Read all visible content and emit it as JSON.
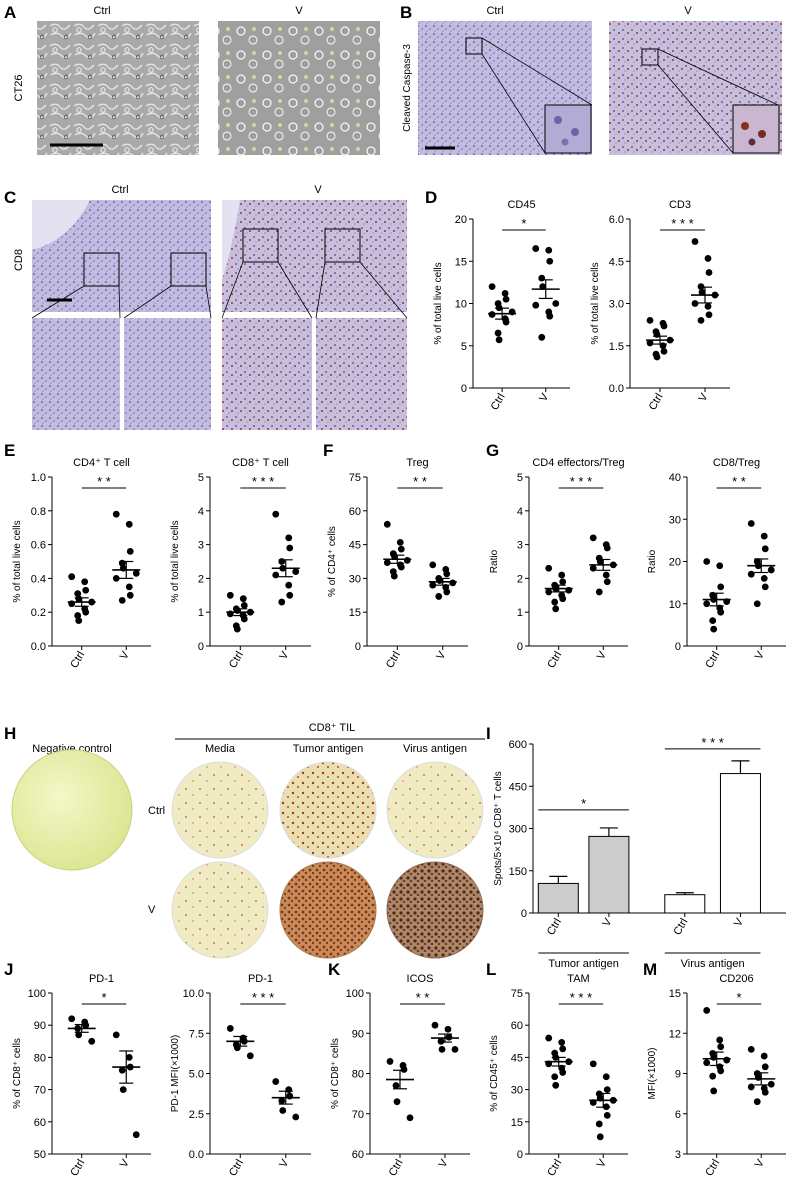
{
  "panel_letters": {
    "A": "A",
    "B": "B",
    "C": "C",
    "D": "D",
    "E": "E",
    "F": "F",
    "G": "G",
    "H": "H",
    "I": "I",
    "J": "J",
    "K": "K",
    "L": "L",
    "M": "M"
  },
  "panel_a": {
    "row_label": "CT26",
    "col_labels": [
      "Ctrl",
      "V"
    ]
  },
  "panel_b": {
    "row_label": "Cleaved Caspase-3",
    "col_labels": [
      "Ctrl",
      "V"
    ]
  },
  "panel_c": {
    "row_label": "CD8",
    "col_labels": [
      "Ctrl",
      "V"
    ]
  },
  "panel_h": {
    "neg_label": "Negative control",
    "group_label": "CD8⁺ TIL",
    "col_labels": [
      "Media",
      "Tumor antigen",
      "Virus antigen"
    ],
    "row_labels": [
      "Ctrl",
      "V"
    ]
  },
  "colors": {
    "tissue": "#b9b3d8",
    "tissue_dark": "#8d86c0",
    "cell_bg": "#aaaaaa",
    "well_bg": "#f2edc4",
    "well_dark": "#a0472a",
    "bar_gray": "#cccccc"
  },
  "chart_data": [
    {
      "id": "D1",
      "type": "scatter",
      "title": "CD45",
      "ylabel": "% of total live cells",
      "categories": [
        "Ctrl",
        "V"
      ],
      "ylim": [
        0,
        20
      ],
      "yticks": [
        "0",
        "5",
        "10",
        "15",
        "20"
      ],
      "sig": "*",
      "series": [
        {
          "values": [
            12.0,
            11.2,
            10.5,
            10.0,
            9.5,
            9.0,
            8.7,
            8.2,
            7.8,
            6.5,
            5.7
          ]
        },
        {
          "values": [
            16.5,
            16.3,
            15.0,
            13.0,
            12.0,
            10.0,
            9.8,
            9.0,
            8.5,
            6.0
          ]
        }
      ],
      "means": [
        8.8,
        11.7
      ],
      "sem": [
        0.65,
        1.1
      ]
    },
    {
      "id": "D2",
      "type": "scatter",
      "title": "CD3",
      "ylabel": "% of total live cells",
      "categories": [
        "Ctrl",
        "V"
      ],
      "ylim": [
        0,
        6
      ],
      "yticks": [
        "0.0",
        "1.5",
        "3.0",
        "4.5",
        "6.0"
      ],
      "sig": "* * *",
      "series": [
        {
          "values": [
            2.4,
            2.3,
            2.2,
            2.0,
            1.9,
            1.7,
            1.6,
            1.5,
            1.3,
            1.2,
            1.1
          ]
        },
        {
          "values": [
            5.2,
            4.6,
            4.1,
            3.6,
            3.4,
            3.3,
            3.0,
            2.9,
            2.6,
            2.4
          ]
        }
      ],
      "means": [
        1.7,
        3.3
      ],
      "sem": [
        0.14,
        0.28
      ]
    },
    {
      "id": "E1",
      "type": "scatter",
      "title": "CD4⁺ T cell",
      "ylabel": "% of total live cells",
      "categories": [
        "Ctrl",
        "V"
      ],
      "ylim": [
        0,
        1.0
      ],
      "yticks": [
        "0.0",
        "0.2",
        "0.4",
        "0.6",
        "0.8",
        "1.0"
      ],
      "sig": "*   *",
      "series": [
        {
          "values": [
            0.41,
            0.38,
            0.33,
            0.31,
            0.28,
            0.26,
            0.25,
            0.22,
            0.2,
            0.18,
            0.15
          ]
        },
        {
          "values": [
            0.78,
            0.72,
            0.56,
            0.49,
            0.46,
            0.43,
            0.4,
            0.35,
            0.3,
            0.27
          ]
        }
      ],
      "means": [
        0.26,
        0.45
      ],
      "sem": [
        0.025,
        0.05
      ]
    },
    {
      "id": "E2",
      "type": "scatter",
      "title": "CD8⁺ T cell",
      "ylabel": "% of total live cells",
      "categories": [
        "Ctrl",
        "V"
      ],
      "ylim": [
        0,
        5
      ],
      "yticks": [
        "0",
        "1",
        "2",
        "3",
        "4",
        "5"
      ],
      "sig": "* * *",
      "series": [
        {
          "values": [
            1.5,
            1.4,
            1.2,
            1.1,
            1.05,
            1.0,
            0.95,
            0.9,
            0.8,
            0.6,
            0.5
          ]
        },
        {
          "values": [
            3.9,
            3.2,
            2.9,
            2.5,
            2.3,
            2.2,
            2.1,
            1.8,
            1.5,
            1.3
          ]
        }
      ],
      "means": [
        1.0,
        2.3
      ],
      "sem": [
        0.1,
        0.25
      ]
    },
    {
      "id": "F",
      "type": "scatter",
      "title": "Treg",
      "ylabel": "% of CD4⁺ cells",
      "categories": [
        "Ctrl",
        "V"
      ],
      "ylim": [
        0,
        75
      ],
      "yticks": [
        "0",
        "15",
        "30",
        "45",
        "60",
        "75"
      ],
      "sig": "*   *",
      "series": [
        {
          "values": [
            54,
            46,
            43,
            41,
            40,
            38,
            37,
            36,
            35,
            33,
            31
          ]
        },
        {
          "values": [
            36,
            34,
            32,
            30,
            29,
            28,
            27,
            26,
            24,
            22
          ]
        }
      ],
      "means": [
        38.5,
        28.5
      ],
      "sem": [
        1.8,
        1.5
      ]
    },
    {
      "id": "G1",
      "type": "scatter",
      "title": "CD4 effectors/Treg",
      "ylabel": "Ratio",
      "categories": [
        "Ctrl",
        "V"
      ],
      "ylim": [
        0,
        5
      ],
      "yticks": [
        "0",
        "1",
        "2",
        "3",
        "4",
        "5"
      ],
      "sig": "* * *",
      "series": [
        {
          "values": [
            2.3,
            2.1,
            1.9,
            1.8,
            1.7,
            1.65,
            1.6,
            1.5,
            1.4,
            1.3,
            1.1
          ]
        },
        {
          "values": [
            3.2,
            3.0,
            2.9,
            2.6,
            2.5,
            2.4,
            2.3,
            2.1,
            1.9,
            1.6
          ]
        }
      ],
      "means": [
        1.7,
        2.4
      ],
      "sem": [
        0.1,
        0.16
      ]
    },
    {
      "id": "G2",
      "type": "scatter",
      "title": "CD8/Treg",
      "ylabel": "Ratio",
      "categories": [
        "Ctrl",
        "V"
      ],
      "ylim": [
        0,
        40
      ],
      "yticks": [
        "0",
        "10",
        "20",
        "30",
        "40"
      ],
      "sig": "*   *",
      "series": [
        {
          "values": [
            20,
            19,
            14,
            12,
            11,
            10.5,
            10,
            9,
            8,
            6,
            4
          ]
        },
        {
          "values": [
            29,
            26,
            23,
            20,
            19,
            18,
            17,
            16,
            14,
            10
          ]
        }
      ],
      "means": [
        11,
        19
      ],
      "sem": [
        1.5,
        1.6
      ]
    },
    {
      "id": "I",
      "type": "bar",
      "ylabel": "Spots/5×10⁴ CD8⁺ T cells",
      "categories": [
        "Ctrl",
        "V",
        "Ctrl",
        "V"
      ],
      "ylim": [
        0,
        600
      ],
      "yticks": [
        "0",
        "150",
        "300",
        "450",
        "600"
      ],
      "values": [
        105,
        272,
        65,
        495
      ],
      "err": [
        25,
        30,
        7,
        45
      ],
      "fills": [
        "#cccccc",
        "#cccccc",
        "#ffffff",
        "#ffffff"
      ],
      "groups": [
        "Tumor antigen",
        "Virus antigen"
      ],
      "sig": [
        "*",
        "* * *"
      ]
    },
    {
      "id": "J1",
      "type": "scatter",
      "title": "PD-1",
      "ylabel": "% of CD8⁺ cells",
      "categories": [
        "Ctrl",
        "V"
      ],
      "ylim": [
        50,
        100
      ],
      "yticks": [
        "50",
        "60",
        "70",
        "80",
        "90",
        "100"
      ],
      "sig": "*",
      "series": [
        {
          "values": [
            92,
            91,
            90,
            89,
            87,
            85
          ]
        },
        {
          "values": [
            87,
            80,
            77,
            76,
            70,
            56
          ]
        }
      ],
      "means": [
        89,
        77
      ],
      "sem": [
        1.2,
        5
      ]
    },
    {
      "id": "J2",
      "type": "scatter",
      "title": "PD-1",
      "ylabel": "PD-1 MFI(×1000)",
      "categories": [
        "Ctrl",
        "V"
      ],
      "ylim": [
        0,
        10
      ],
      "yticks": [
        "0.0",
        "2.5",
        "5.0",
        "7.5",
        "10.0"
      ],
      "sig": "* * *",
      "series": [
        {
          "values": [
            7.8,
            7.2,
            7.0,
            6.8,
            6.6,
            6.1
          ]
        },
        {
          "values": [
            4.5,
            4.0,
            3.6,
            3.3,
            2.7,
            2.3
          ]
        }
      ],
      "means": [
        7.0,
        3.5
      ],
      "sem": [
        0.3,
        0.4
      ]
    },
    {
      "id": "K",
      "type": "scatter",
      "title": "ICOS",
      "ylabel": "% of CD8⁺ cells",
      "categories": [
        "Ctrl",
        "V"
      ],
      "ylim": [
        60,
        100
      ],
      "yticks": [
        "60",
        "70",
        "80",
        "90",
        "100"
      ],
      "sig": "*   *",
      "series": [
        {
          "values": [
            83,
            82,
            81,
            77,
            73,
            69
          ]
        },
        {
          "values": [
            92,
            91,
            89,
            88,
            86,
            86
          ]
        }
      ],
      "means": [
        78.5,
        88.8
      ],
      "sem": [
        2.3,
        1.0
      ]
    },
    {
      "id": "L",
      "type": "scatter",
      "title": "TAM",
      "ylabel": "% of CD45⁺ cells",
      "categories": [
        "Ctrl",
        "V"
      ],
      "ylim": [
        0,
        75
      ],
      "yticks": [
        "0",
        "15",
        "30",
        "45",
        "60",
        "75"
      ],
      "sig": "* * *",
      "series": [
        {
          "values": [
            54,
            52,
            49,
            47,
            45,
            43,
            42,
            40,
            38,
            36,
            32
          ]
        },
        {
          "values": [
            42,
            36,
            30,
            28,
            26,
            25,
            24,
            22,
            18,
            14,
            8
          ]
        }
      ],
      "means": [
        43,
        25
      ],
      "sem": [
        2,
        3.2
      ]
    },
    {
      "id": "M",
      "type": "scatter",
      "title": "CD206",
      "ylabel": "MFI(×1000)",
      "categories": [
        "Ctrl",
        "V"
      ],
      "ylim": [
        3,
        15
      ],
      "yticks": [
        "3",
        "6",
        "9",
        "12",
        "15"
      ],
      "sig": "*",
      "series": [
        {
          "values": [
            13.7,
            11.5,
            11.0,
            10.5,
            10.2,
            10.0,
            9.8,
            9.5,
            9.2,
            8.8,
            7.7
          ]
        },
        {
          "values": [
            10.8,
            10.3,
            9.5,
            9.0,
            8.7,
            8.2,
            8.0,
            7.9,
            7.6,
            6.9
          ]
        }
      ],
      "means": [
        10.1,
        8.6
      ],
      "sem": [
        0.5,
        0.45
      ]
    }
  ]
}
